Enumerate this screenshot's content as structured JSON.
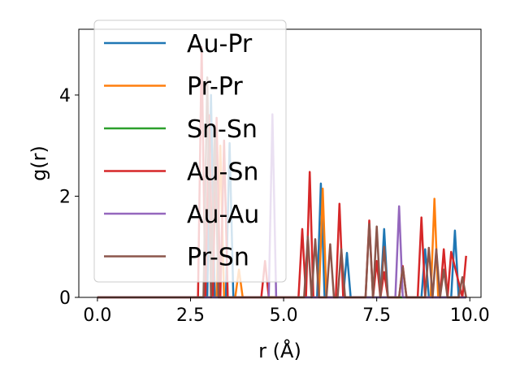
{
  "chart_data": {
    "type": "line",
    "xlabel": "r (Å)",
    "ylabel": "g(r)",
    "xlim": [
      -0.5,
      10.3
    ],
    "ylim": [
      0,
      5.3
    ],
    "xticks": [
      0.0,
      2.5,
      5.0,
      7.5,
      10.0
    ],
    "xtick_labels": [
      "0.0",
      "2.5",
      "5.0",
      "7.5",
      "10.0"
    ],
    "yticks": [
      0,
      2,
      4
    ],
    "ytick_labels": [
      "0",
      "2",
      "4"
    ],
    "legend_position": "upper-left",
    "grid": false,
    "series": [
      {
        "name": "Au-Pr",
        "color": "#1f77b4",
        "x": [
          0.0,
          2.95,
          3.05,
          3.15,
          3.25,
          3.45,
          3.55,
          3.65,
          3.75,
          5.9,
          6.0,
          6.1,
          6.6,
          6.7,
          6.8,
          7.6,
          7.7,
          7.8,
          8.7,
          8.8,
          8.9,
          9.5,
          9.6,
          9.7,
          9.9
        ],
        "y": [
          0,
          0,
          4.0,
          0,
          0,
          0,
          3.05,
          0,
          0,
          0,
          2.25,
          0,
          0,
          0.88,
          0,
          0,
          1.35,
          0,
          0,
          0.95,
          0,
          0,
          1.32,
          0,
          0
        ]
      },
      {
        "name": "Pr-Pr",
        "color": "#ff7f0e",
        "x": [
          0.0,
          3.2,
          3.3,
          3.4,
          3.5,
          3.7,
          3.8,
          3.9,
          5.95,
          6.05,
          6.15,
          8.95,
          9.05,
          9.15,
          9.9
        ],
        "y": [
          0,
          0,
          3.0,
          0,
          0,
          0,
          0.55,
          0,
          0,
          2.15,
          0,
          0,
          1.95,
          0,
          0
        ]
      },
      {
        "name": "Sn-Sn",
        "color": "#2ca02c",
        "x": [
          0.0,
          9.9
        ],
        "y": [
          0,
          0
        ]
      },
      {
        "name": "Au-Sn",
        "color": "#d62728",
        "x": [
          0.0,
          2.7,
          2.8,
          2.9,
          3.0,
          3.1,
          3.2,
          3.3,
          3.4,
          3.5,
          4.4,
          4.5,
          4.6,
          5.4,
          5.5,
          5.6,
          5.7,
          5.8,
          6.4,
          6.5,
          6.6,
          7.2,
          7.3,
          7.4,
          7.5,
          7.6,
          7.7,
          7.8,
          8.1,
          8.2,
          8.3,
          8.6,
          8.7,
          8.8,
          9.2,
          9.3,
          9.4,
          9.5,
          9.8,
          9.9
        ],
        "y": [
          0,
          0,
          4.95,
          0,
          3.6,
          0,
          3.55,
          0,
          3.1,
          0,
          0,
          0.72,
          0,
          0,
          1.35,
          0,
          2.48,
          0,
          0,
          1.85,
          0,
          0,
          1.52,
          0,
          0.72,
          0,
          0.5,
          0,
          0,
          0.62,
          0,
          0,
          1.58,
          0,
          0,
          0.95,
          0,
          0.9,
          0,
          0.82
        ]
      },
      {
        "name": "Au-Au",
        "color": "#9467bd",
        "x": [
          0.0,
          4.6,
          4.7,
          4.8,
          8.0,
          8.1,
          8.2,
          9.9
        ],
        "y": [
          0,
          0,
          3.62,
          0,
          0,
          1.8,
          0,
          0
        ]
      },
      {
        "name": "Pr-Sn",
        "color": "#8c564b",
        "x": [
          0.0,
          2.85,
          2.95,
          3.05,
          3.15,
          3.25,
          3.35,
          5.55,
          5.65,
          5.75,
          5.85,
          5.95,
          6.15,
          6.25,
          6.35,
          6.45,
          6.55,
          6.65,
          6.75,
          7.2,
          7.3,
          7.4,
          7.5,
          7.6,
          7.7,
          7.8,
          8.1,
          8.2,
          8.3,
          8.8,
          8.9,
          9.0,
          9.1,
          9.2,
          9.3,
          9.4,
          9.7,
          9.8,
          9.9
        ],
        "y": [
          0,
          0,
          4.35,
          0,
          3.35,
          0,
          0,
          0,
          1.2,
          0,
          1.15,
          0,
          0,
          1.05,
          0,
          0,
          0.95,
          0,
          0,
          0,
          1.45,
          0,
          1.4,
          0,
          1.0,
          0,
          0,
          0.6,
          0,
          0,
          0.98,
          0,
          0.95,
          0,
          0.55,
          0,
          0,
          0.4,
          0
        ]
      }
    ]
  }
}
